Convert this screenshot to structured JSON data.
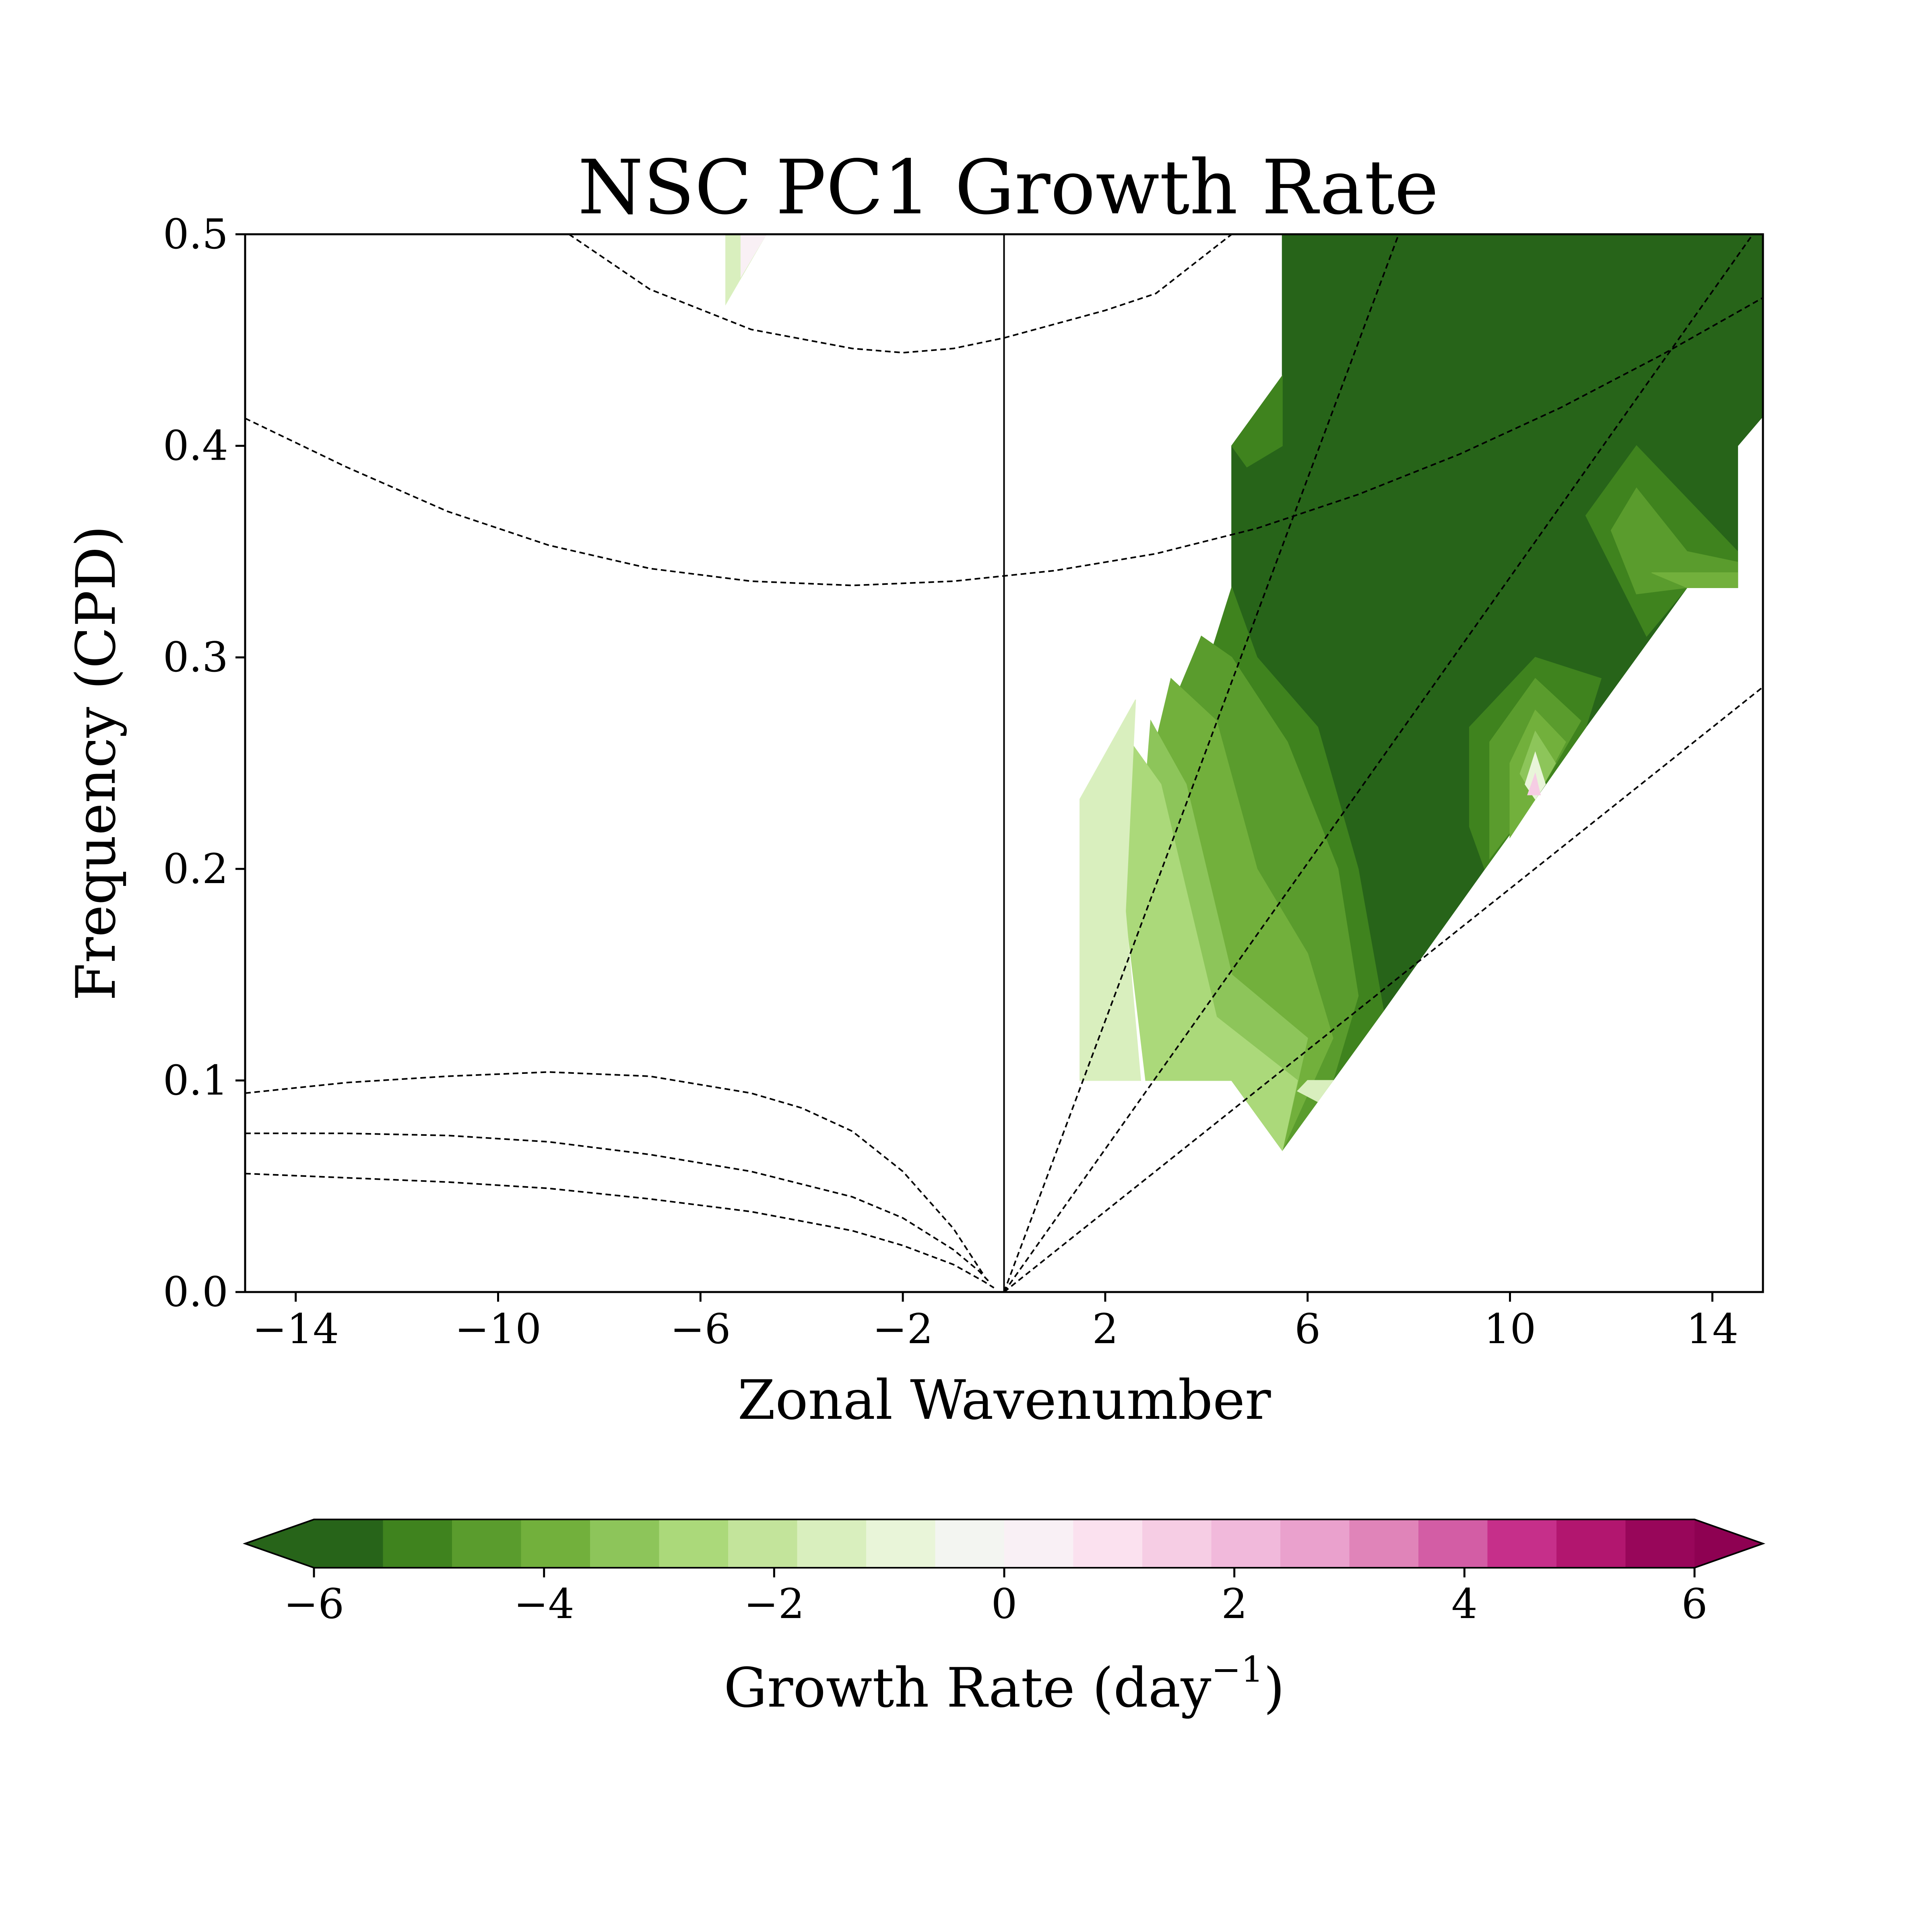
{
  "chart_data": {
    "type": "heatmap",
    "title": "NSC PC1 Growth Rate",
    "xlabel": "Zonal Wavenumber",
    "ylabel": "Frequency (CPD)",
    "xlim": [
      -15,
      15
    ],
    "ylim": [
      0,
      0.5
    ],
    "xticks": [
      -14,
      -10,
      -6,
      -2,
      2,
      6,
      10,
      14
    ],
    "xtick_labels": [
      "−14",
      "−10",
      "−6",
      "−2",
      "2",
      "6",
      "10",
      "14"
    ],
    "yticks": [
      0.0,
      0.1,
      0.2,
      0.3,
      0.4,
      0.5
    ],
    "ytick_labels": [
      "0.0",
      "0.1",
      "0.2",
      "0.3",
      "0.4",
      "0.5"
    ],
    "zero_line_x": 0,
    "grid": false,
    "colorbar": {
      "label_main": "Growth Rate (day",
      "label_sup": "−1",
      "label_end": ")",
      "range": [
        -6,
        6
      ],
      "ticks": [
        -6,
        -4,
        -2,
        0,
        2,
        4,
        6
      ],
      "tick_labels": [
        "−6",
        "−4",
        "−2",
        "0",
        "2",
        "4",
        "6"
      ],
      "orientation": "horizontal",
      "extend": "both",
      "colors": [
        "#276419",
        "#3f831e",
        "#5a9c2d",
        "#72b03c",
        "#8dc55a",
        "#abd97a",
        "#c3e49b",
        "#d9efbe",
        "#e9f5d9",
        "#f3f5f1",
        "#f9f0f5",
        "#fbe1ef",
        "#f6cde4",
        "#f1b9db",
        "#eaa1cd",
        "#e084b9",
        "#d35da5",
        "#c62f8a",
        "#b2166f",
        "#98065a"
      ],
      "under_color": "#276419",
      "over_color": "#8e0152"
    },
    "filled_regions": [
      {
        "level": -6,
        "color": "#276419",
        "points": [
          [
            5.5,
            0.5
          ],
          [
            15,
            0.5
          ],
          [
            15,
            0.414
          ],
          [
            14.5,
            0.4
          ],
          [
            14.5,
            0.333
          ],
          [
            13.5,
            0.333
          ],
          [
            11.5,
            0.267
          ],
          [
            10.5,
            0.233
          ],
          [
            9.5,
            0.2
          ],
          [
            7.5,
            0.133
          ],
          [
            6.5,
            0.1
          ],
          [
            4.5,
            0.1
          ],
          [
            4.5,
            0.4
          ],
          [
            5.5,
            0.433
          ]
        ]
      },
      {
        "level": -5,
        "color": "#3f831e",
        "points": [
          [
            4.5,
            0.4
          ],
          [
            5.5,
            0.433
          ],
          [
            5.5,
            0.4
          ],
          [
            4.8,
            0.39
          ]
        ]
      },
      {
        "level": -5,
        "color": "#3f831e",
        "points": [
          [
            11.5,
            0.367
          ],
          [
            12.5,
            0.4
          ],
          [
            14.5,
            0.35
          ],
          [
            14.5,
            0.333
          ],
          [
            13.5,
            0.333
          ],
          [
            12.7,
            0.31
          ]
        ]
      },
      {
        "level": -5,
        "color": "#3f831e",
        "points": [
          [
            9.2,
            0.267
          ],
          [
            10.5,
            0.3
          ],
          [
            11.8,
            0.29
          ],
          [
            11.5,
            0.267
          ],
          [
            10.5,
            0.233
          ],
          [
            9.5,
            0.2
          ],
          [
            9.2,
            0.22
          ]
        ]
      },
      {
        "level": -5,
        "color": "#3f831e",
        "points": [
          [
            4.5,
            0.333
          ],
          [
            5,
            0.3
          ],
          [
            6.2,
            0.267
          ],
          [
            7,
            0.2
          ],
          [
            7.5,
            0.133
          ],
          [
            6.5,
            0.1
          ],
          [
            5.5,
            0.067
          ],
          [
            4.7,
            0.1
          ],
          [
            4.2,
            0.2
          ],
          [
            3.8,
            0.28
          ]
        ]
      },
      {
        "level": -4,
        "color": "#5a9c2d",
        "points": [
          [
            12,
            0.36
          ],
          [
            12.5,
            0.38
          ],
          [
            13.5,
            0.35
          ],
          [
            14.5,
            0.345
          ],
          [
            14.5,
            0.333
          ],
          [
            13.5,
            0.333
          ],
          [
            12.5,
            0.33
          ]
        ]
      },
      {
        "level": -4,
        "color": "#5a9c2d",
        "points": [
          [
            9.6,
            0.26
          ],
          [
            10.5,
            0.29
          ],
          [
            11.4,
            0.27
          ],
          [
            10.5,
            0.233
          ],
          [
            9.6,
            0.205
          ]
        ]
      },
      {
        "level": -4,
        "color": "#5a9c2d",
        "points": [
          [
            3.9,
            0.31
          ],
          [
            4.5,
            0.3
          ],
          [
            5.6,
            0.26
          ],
          [
            6.6,
            0.2
          ],
          [
            7,
            0.14
          ],
          [
            6.5,
            0.1
          ],
          [
            5.5,
            0.067
          ],
          [
            4.5,
            0.1
          ],
          [
            3.5,
            0.2
          ],
          [
            3.2,
            0.27
          ]
        ]
      },
      {
        "level": -3,
        "color": "#72b03c",
        "points": [
          [
            12.8,
            0.34
          ],
          [
            14.5,
            0.34
          ],
          [
            14.5,
            0.333
          ],
          [
            13.5,
            0.333
          ]
        ]
      },
      {
        "level": -3,
        "color": "#72b03c",
        "points": [
          [
            10,
            0.25
          ],
          [
            10.5,
            0.275
          ],
          [
            11.1,
            0.26
          ],
          [
            10.5,
            0.233
          ],
          [
            10,
            0.215
          ]
        ]
      },
      {
        "level": -3,
        "color": "#72b03c",
        "points": [
          [
            3.3,
            0.29
          ],
          [
            4.2,
            0.27
          ],
          [
            5,
            0.2
          ],
          [
            6,
            0.16
          ],
          [
            6.5,
            0.12
          ],
          [
            5.5,
            0.067
          ],
          [
            4.5,
            0.1
          ],
          [
            3.3,
            0.2
          ],
          [
            3,
            0.26
          ]
        ]
      },
      {
        "level": -2,
        "color": "#8dc55a",
        "points": [
          [
            10.2,
            0.245
          ],
          [
            10.5,
            0.265
          ],
          [
            10.9,
            0.25
          ],
          [
            10.5,
            0.233
          ]
        ]
      },
      {
        "level": -2,
        "color": "#8dc55a",
        "points": [
          [
            2.9,
            0.27
          ],
          [
            3.6,
            0.24
          ],
          [
            4.5,
            0.15
          ],
          [
            6,
            0.12
          ],
          [
            5.5,
            0.067
          ],
          [
            4.5,
            0.1
          ],
          [
            3,
            0.18
          ],
          [
            2.8,
            0.24
          ]
        ]
      },
      {
        "level": -1,
        "color": "#abd97a",
        "points": [
          [
            2.5,
            0.26
          ],
          [
            3.1,
            0.24
          ],
          [
            4.2,
            0.13
          ],
          [
            5.8,
            0.1
          ],
          [
            5.5,
            0.067
          ],
          [
            4.5,
            0.1
          ],
          [
            2.8,
            0.1
          ],
          [
            2.4,
            0.18
          ]
        ]
      },
      {
        "level": -0.5,
        "color": "#d9efbe",
        "points": [
          [
            1.5,
            0.233
          ],
          [
            2.6,
            0.28
          ],
          [
            2.4,
            0.18
          ],
          [
            2.7,
            0.1
          ],
          [
            1.5,
            0.1
          ]
        ]
      },
      {
        "level": 0,
        "color": "#e9f5d9",
        "points": [
          [
            10.3,
            0.24
          ],
          [
            10.5,
            0.255
          ],
          [
            10.7,
            0.24
          ],
          [
            10.5,
            0.233
          ]
        ]
      },
      {
        "level": 0.5,
        "color": "#f6cde4",
        "points": [
          [
            10.35,
            0.235
          ],
          [
            10.5,
            0.245
          ],
          [
            10.6,
            0.235
          ]
        ]
      },
      {
        "level": -0.5,
        "color": "#d9efbe",
        "points": [
          [
            6.0,
            0.1
          ],
          [
            6.5,
            0.1
          ],
          [
            6.2,
            0.09
          ],
          [
            5.8,
            0.095
          ]
        ]
      },
      {
        "level": -0.5,
        "color": "#d9efbe",
        "points": [
          [
            -5.5,
            0.467
          ],
          [
            -5.5,
            0.5
          ],
          [
            -4.7,
            0.5
          ]
        ]
      },
      {
        "level": 0.5,
        "color": "#f9f0f5",
        "points": [
          [
            -5.2,
            0.48
          ],
          [
            -5.2,
            0.5
          ],
          [
            -4.7,
            0.5
          ]
        ]
      }
    ],
    "dispersion_curves": [
      {
        "style": "dashed",
        "points": [
          [
            -8.6,
            0.5
          ],
          [
            -7,
            0.474
          ],
          [
            -5,
            0.455
          ],
          [
            -3,
            0.446
          ],
          [
            -2,
            0.444
          ],
          [
            -1,
            0.446
          ],
          [
            0,
            0.451
          ],
          [
            2,
            0.464
          ],
          [
            3,
            0.472
          ],
          [
            4.5,
            0.5
          ]
        ]
      },
      {
        "style": "dashed",
        "points": [
          [
            -15,
            0.413
          ],
          [
            -13,
            0.39
          ],
          [
            -11,
            0.369
          ],
          [
            -9,
            0.353
          ],
          [
            -7,
            0.342
          ],
          [
            -5,
            0.336
          ],
          [
            -3,
            0.334
          ],
          [
            -1,
            0.336
          ],
          [
            1,
            0.341
          ],
          [
            3,
            0.349
          ],
          [
            5,
            0.361
          ],
          [
            7,
            0.377
          ],
          [
            9,
            0.396
          ],
          [
            11,
            0.418
          ],
          [
            13,
            0.443
          ],
          [
            15,
            0.47
          ]
        ]
      },
      {
        "style": "dashed",
        "points": [
          [
            -15,
            0.094
          ],
          [
            -13,
            0.099
          ],
          [
            -11,
            0.102
          ],
          [
            -9,
            0.104
          ],
          [
            -7,
            0.102
          ],
          [
            -5,
            0.094
          ],
          [
            -4,
            0.087
          ],
          [
            -3,
            0.076
          ],
          [
            -2,
            0.057
          ],
          [
            -1,
            0.03
          ],
          [
            -0.4,
            0.008
          ]
        ]
      },
      {
        "style": "dashed",
        "points": [
          [
            -15,
            0.075
          ],
          [
            -13,
            0.075
          ],
          [
            -11,
            0.074
          ],
          [
            -9,
            0.071
          ],
          [
            -7,
            0.065
          ],
          [
            -5,
            0.057
          ],
          [
            -3,
            0.045
          ],
          [
            -2,
            0.035
          ],
          [
            -1,
            0.02
          ],
          [
            -0.5,
            0.01
          ],
          [
            -0.3,
            0.005
          ]
        ]
      },
      {
        "style": "dashed",
        "points": [
          [
            -15,
            0.056
          ],
          [
            -13,
            0.054
          ],
          [
            -11,
            0.052
          ],
          [
            -9,
            0.049
          ],
          [
            -7,
            0.044
          ],
          [
            -5,
            0.038
          ],
          [
            -3,
            0.029
          ],
          [
            -2,
            0.022
          ],
          [
            -1,
            0.013
          ],
          [
            -0.4,
            0.005
          ],
          [
            -0.2,
            0.002
          ]
        ]
      },
      {
        "style": "dashed",
        "points": [
          [
            0,
            0
          ],
          [
            7.8,
            0.5
          ]
        ]
      },
      {
        "style": "dashed",
        "points": [
          [
            0,
            0
          ],
          [
            14.8,
            0.5
          ]
        ]
      },
      {
        "style": "dashed",
        "points": [
          [
            0,
            0
          ],
          [
            15,
            0.286
          ]
        ]
      }
    ]
  }
}
